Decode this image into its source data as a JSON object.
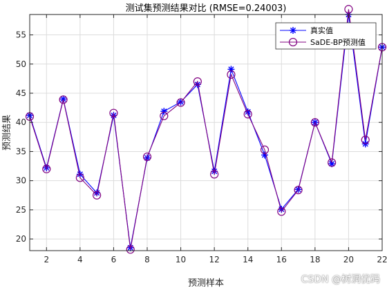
{
  "chart_data": {
    "type": "line",
    "title": "测试集预测结果对比 (RMSE=0.24003)",
    "xlabel": "预测样本",
    "ylabel": "预测结果",
    "xlim": [
      1,
      22
    ],
    "ylim": [
      18,
      58.5
    ],
    "xticks": [
      2,
      4,
      6,
      8,
      10,
      12,
      14,
      16,
      18,
      20,
      22
    ],
    "yticks": [
      20,
      25,
      30,
      35,
      40,
      45,
      50,
      55
    ],
    "grid": true,
    "legend_position": "top-right",
    "x": [
      1,
      2,
      3,
      4,
      5,
      6,
      7,
      8,
      9,
      10,
      11,
      12,
      13,
      14,
      15,
      16,
      17,
      18,
      19,
      20,
      21,
      22
    ],
    "series": [
      {
        "name": "真实值",
        "color": "#0000ff",
        "marker": "asterisk",
        "values": [
          41.2,
          32.2,
          44.0,
          31.1,
          27.9,
          41.2,
          18.5,
          33.9,
          41.9,
          43.5,
          46.5,
          31.6,
          49.1,
          41.8,
          34.4,
          25.1,
          28.5,
          40.0,
          32.9,
          58.5,
          36.3,
          52.9
        ]
      },
      {
        "name": "SaDE-BP预测值",
        "color": "#800080",
        "marker": "circle",
        "values": [
          41.0,
          32.0,
          43.9,
          30.5,
          27.5,
          41.6,
          18.2,
          34.1,
          41.1,
          43.4,
          47.0,
          31.1,
          48.2,
          41.4,
          35.3,
          24.7,
          28.4,
          40.0,
          33.1,
          59.4,
          37.0,
          52.9
        ]
      }
    ]
  },
  "watermark": "CSDN @树洞优码"
}
